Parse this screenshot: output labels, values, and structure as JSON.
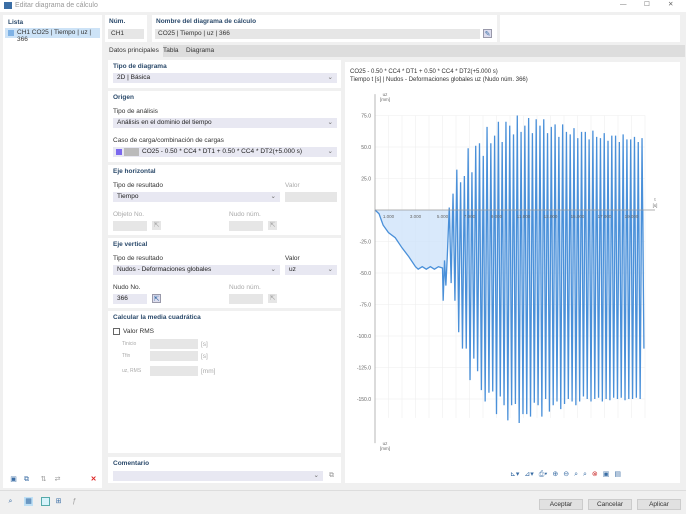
{
  "window": {
    "title": "Editar diagrama de cálculo"
  },
  "list": {
    "header": "Lista",
    "items": [
      {
        "label": "CH1 CO25 | Tiempo | uz | 366"
      }
    ]
  },
  "header": {
    "num_label": "Núm.",
    "num_value": "CH1",
    "name_label": "Nombre del diagrama de cálculo",
    "name_value": "CO25 | Tiempo | uz | 366"
  },
  "tabs": [
    {
      "label": "Datos principales",
      "active": true
    },
    {
      "label": "Tabla"
    },
    {
      "label": "Diagrama"
    }
  ],
  "form": {
    "tipo_diagrama": {
      "header": "Tipo de diagrama",
      "value": "2D | Básica"
    },
    "origen": {
      "header": "Origen",
      "analysis_label": "Tipo de análisis",
      "analysis_value": "Análisis en el dominio del tiempo",
      "load_label": "Caso de carga/combinación de cargas",
      "load_value": "CO25 - 0.50 * CC4 * DT1 + 0.50 * CC4 * DT2(+5.000 s)",
      "load_color": "#7b68ee"
    },
    "eje_horizontal": {
      "header": "Eje horizontal",
      "result_label": "Tipo de resultado",
      "result_value": "Tiempo",
      "valor_label": "Valor",
      "objeto_label": "Objeto No.",
      "nudo_label": "Nudo núm."
    },
    "eje_vertical": {
      "header": "Eje vertical",
      "result_label": "Tipo de resultado",
      "result_value": "Nudos - Deformaciones globales",
      "valor_label": "Valor",
      "valor_value": "uz",
      "nudo_no_label": "Nudo No.",
      "nudo_no_value": "366",
      "nudo_label": "Nudo núm."
    },
    "rms": {
      "header": "Calcular la media cuadrática",
      "checkbox_label": "Valor RMS",
      "checked": false,
      "rows": [
        {
          "label": "Tinicio",
          "unit": "[s]"
        },
        {
          "label": "Tfin",
          "unit": "[s]"
        },
        {
          "label": "uz, RMS",
          "unit": "[mm]"
        }
      ]
    },
    "comentario": {
      "header": "Comentario",
      "value": ""
    }
  },
  "chart_data": {
    "type": "line",
    "title": "CO25 - 0.50 * CC4 * DT1 + 0.50 * CC4 * DT2(+5.000 s)",
    "subtitle": "Tiempo t [s] | Nudos - Deformaciones globales uz (Nudo núm. 366)",
    "xlabel": "t",
    "xunit": "[s]",
    "ylabel": "uz",
    "yunit": "[mm]",
    "xlim": [
      0,
      20
    ],
    "ylim": [
      -175,
      90
    ],
    "xticks": [
      "1.000",
      "3.000",
      "5.000",
      "7.000",
      "9.000",
      "11.000",
      "13.000",
      "15.000",
      "17.000",
      "19.000"
    ],
    "xtick_values": [
      1,
      3,
      5,
      7,
      9,
      11,
      13,
      15,
      17,
      19
    ],
    "yticks": [
      75,
      50,
      25,
      -25,
      -50,
      -75,
      -100,
      -125,
      -150
    ],
    "ytick_labels": [
      "75.0",
      "50.0",
      "25.0",
      "-25.0",
      "-50.0",
      "-75.0",
      "-100.0",
      "-125.0",
      "-150.0"
    ],
    "grid": true,
    "fill_to_zero": true,
    "color": "#4a90d9",
    "fill_color": "#cfe4fa",
    "series": [
      {
        "x": [
          0,
          0.3,
          0.6,
          1,
          1.5,
          2,
          2.5,
          3,
          3.2,
          3.5,
          3.8,
          4.1,
          4.4,
          4.7,
          5.0,
          5.05,
          5.15,
          5.25,
          5.35,
          5.5,
          5.64,
          5.78,
          5.92,
          6.06,
          6.2,
          6.34,
          6.48,
          6.62,
          6.76,
          6.9,
          7.04,
          7.18,
          7.32,
          7.46,
          7.6,
          7.74,
          7.88,
          8.02,
          8.16,
          8.3,
          8.44,
          8.58,
          8.72,
          8.86,
          9.0,
          9.14,
          9.28,
          9.42,
          9.56,
          9.7,
          9.84,
          9.98,
          10.12,
          10.26,
          10.4,
          10.54,
          10.68,
          10.82,
          10.96,
          11.1,
          11.24,
          11.38,
          11.52,
          11.66,
          11.8,
          11.94,
          12.08,
          12.22,
          12.36,
          12.5,
          12.64,
          12.78,
          12.92,
          13.06,
          13.2,
          13.34,
          13.48,
          13.62,
          13.76,
          13.9,
          14.04,
          14.18,
          14.32,
          14.46,
          14.6,
          14.74,
          14.88,
          15.02,
          15.16,
          15.3,
          15.44,
          15.58,
          15.72,
          15.86,
          16.0,
          16.14,
          16.28,
          16.42,
          16.56,
          16.7,
          16.84,
          16.98,
          17.12,
          17.26,
          17.4,
          17.54,
          17.68,
          17.82,
          17.96,
          18.1,
          18.24,
          18.38,
          18.52,
          18.66,
          18.8,
          18.94,
          19.08,
          19.22,
          19.36,
          19.5,
          19.64,
          19.78,
          19.92
        ],
        "y": [
          0,
          -3,
          -12,
          -18,
          -22,
          -30,
          -37,
          -45,
          -47,
          -45,
          -47,
          -45,
          -47,
          -45,
          -46,
          -72,
          -40,
          -60,
          -38,
          2,
          -58,
          13,
          -72,
          32,
          -97,
          22,
          -110,
          27,
          -110,
          49,
          -135,
          30,
          -118,
          51,
          -128,
          53,
          -143,
          43,
          -152,
          66,
          -145,
          53,
          -144,
          59,
          -162,
          70,
          -148,
          54,
          -155,
          70,
          -167,
          67,
          -155,
          60,
          -154,
          75,
          -169,
          62,
          -162,
          67,
          -162,
          73,
          -164,
          61,
          -153,
          72,
          -155,
          67,
          -164,
          72,
          -150,
          61,
          -160,
          66,
          -155,
          68,
          -152,
          58,
          -158,
          68,
          -154,
          62,
          -150,
          60,
          -152,
          65,
          -155,
          57,
          -152,
          62,
          -148,
          62,
          -150,
          56,
          -152,
          63,
          -150,
          58,
          -149,
          57,
          -152,
          61,
          -150,
          55,
          -151,
          59,
          -149,
          59,
          -150,
          54,
          -149,
          60,
          -151,
          56,
          -150,
          56,
          -150,
          58,
          -149,
          54,
          -150,
          57,
          -110
        ]
      }
    ]
  },
  "chart_toolbar": [
    "axis-settings-icon",
    "series-settings-icon",
    "print-icon",
    "zoom-in-icon",
    "zoom-out-icon",
    "zoom-window-icon",
    "zoom-all-icon",
    "zoom-reset-icon",
    "view-icon",
    "view-table-icon"
  ],
  "bottom_toolbar": [
    "search-icon",
    "model-icon",
    "color-icon",
    "structure-icon",
    "formula-icon"
  ],
  "buttons": {
    "accept": "Aceptar",
    "cancel": "Cancelar",
    "apply": "Aplicar"
  }
}
